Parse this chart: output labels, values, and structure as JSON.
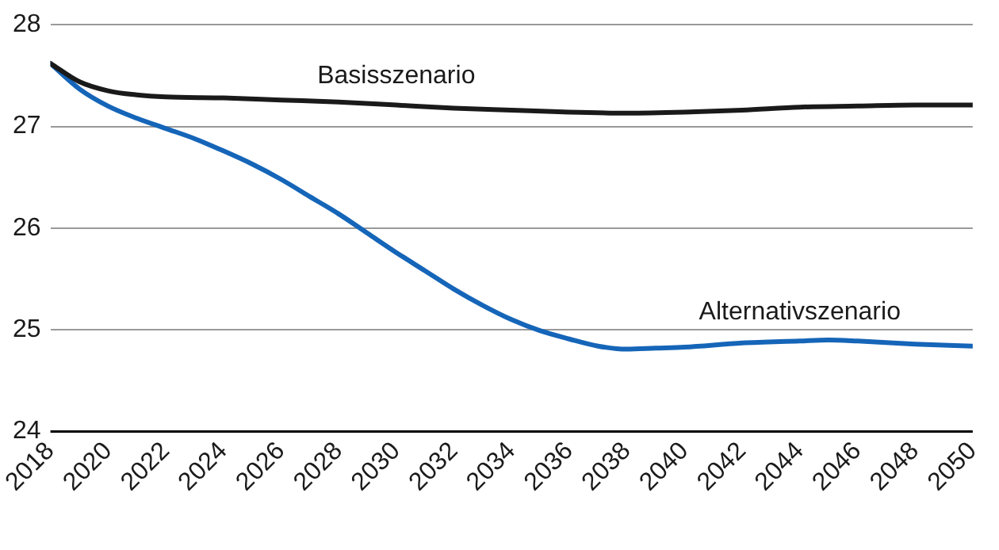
{
  "chart_data": {
    "type": "line",
    "xlim": [
      2018,
      2050
    ],
    "xticks": [
      2018,
      2020,
      2022,
      2024,
      2026,
      2028,
      2030,
      2032,
      2034,
      2036,
      2038,
      2040,
      2042,
      2044,
      2046,
      2048,
      2050
    ],
    "ylim": [
      24,
      28
    ],
    "yticks": [
      24,
      25,
      26,
      27,
      28
    ],
    "grid": "y",
    "legend": false,
    "marker": "none",
    "line_style": "solid",
    "series": [
      {
        "name": "Basisszenario",
        "color": "#1a1a1a",
        "x": [
          2018,
          2019,
          2020,
          2021,
          2022,
          2024,
          2026,
          2028,
          2030,
          2032,
          2034,
          2036,
          2038,
          2040,
          2042,
          2044,
          2046,
          2048,
          2050
        ],
        "values": [
          27.62,
          27.44,
          27.35,
          27.31,
          27.29,
          27.28,
          27.26,
          27.24,
          27.21,
          27.18,
          27.16,
          27.14,
          27.13,
          27.14,
          27.16,
          27.19,
          27.2,
          27.21,
          27.21
        ]
      },
      {
        "name": "Alternativszenario",
        "color": "#1565b8",
        "x": [
          2018,
          2019,
          2020,
          2021,
          2022,
          2023,
          2024,
          2025,
          2026,
          2027,
          2028,
          2029,
          2030,
          2031,
          2032,
          2033,
          2034,
          2035,
          2036,
          2037,
          2038,
          2039,
          2040,
          2042,
          2044,
          2045,
          2046,
          2048,
          2050
        ],
        "values": [
          27.62,
          27.37,
          27.2,
          27.08,
          26.98,
          26.88,
          26.76,
          26.63,
          26.48,
          26.31,
          26.14,
          25.95,
          25.76,
          25.58,
          25.4,
          25.24,
          25.1,
          24.99,
          24.91,
          24.84,
          24.81,
          24.82,
          24.83,
          24.87,
          24.89,
          24.9,
          24.89,
          24.86,
          24.84
        ]
      }
    ]
  }
}
